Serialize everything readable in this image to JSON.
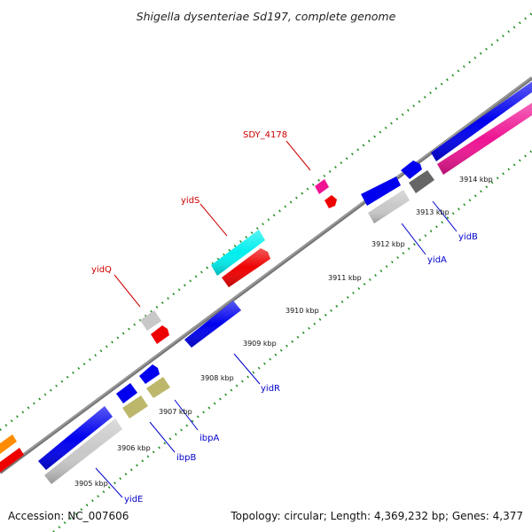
{
  "title": "Shigella dysenteriae Sd197, complete genome",
  "footer": {
    "accession": "Accession: NC_007606",
    "topology": "Topology: circular; Length: 4,369,232 bp; Genes: 4,377"
  },
  "colors": {
    "backbone": "#808080",
    "gc_dots": "#1a8a1a",
    "label_forward": "#cc0000",
    "label_reverse": "#0000cc",
    "blue": "#0000ee",
    "red": "#ee0000",
    "cyan": "#00eeee",
    "magenta": "#ee1493",
    "lightgray": "#c8c8c8",
    "darkgray": "#666666",
    "khaki": "#bdb76b",
    "orange": "#ff8c00"
  },
  "tick_labels": [
    "3905 kbp",
    "3906 kbp",
    "3907 kbp",
    "3908 kbp",
    "3909 kbp",
    "3910 kbp",
    "3911 kbp",
    "3912 kbp",
    "3913 kbp",
    "3914 kbp"
  ],
  "gene_labels": [
    "SDY_4178",
    "yidS",
    "yidQ",
    "yidR",
    "yidA",
    "yidB",
    "ibpA",
    "ibpB",
    "yidE"
  ]
}
